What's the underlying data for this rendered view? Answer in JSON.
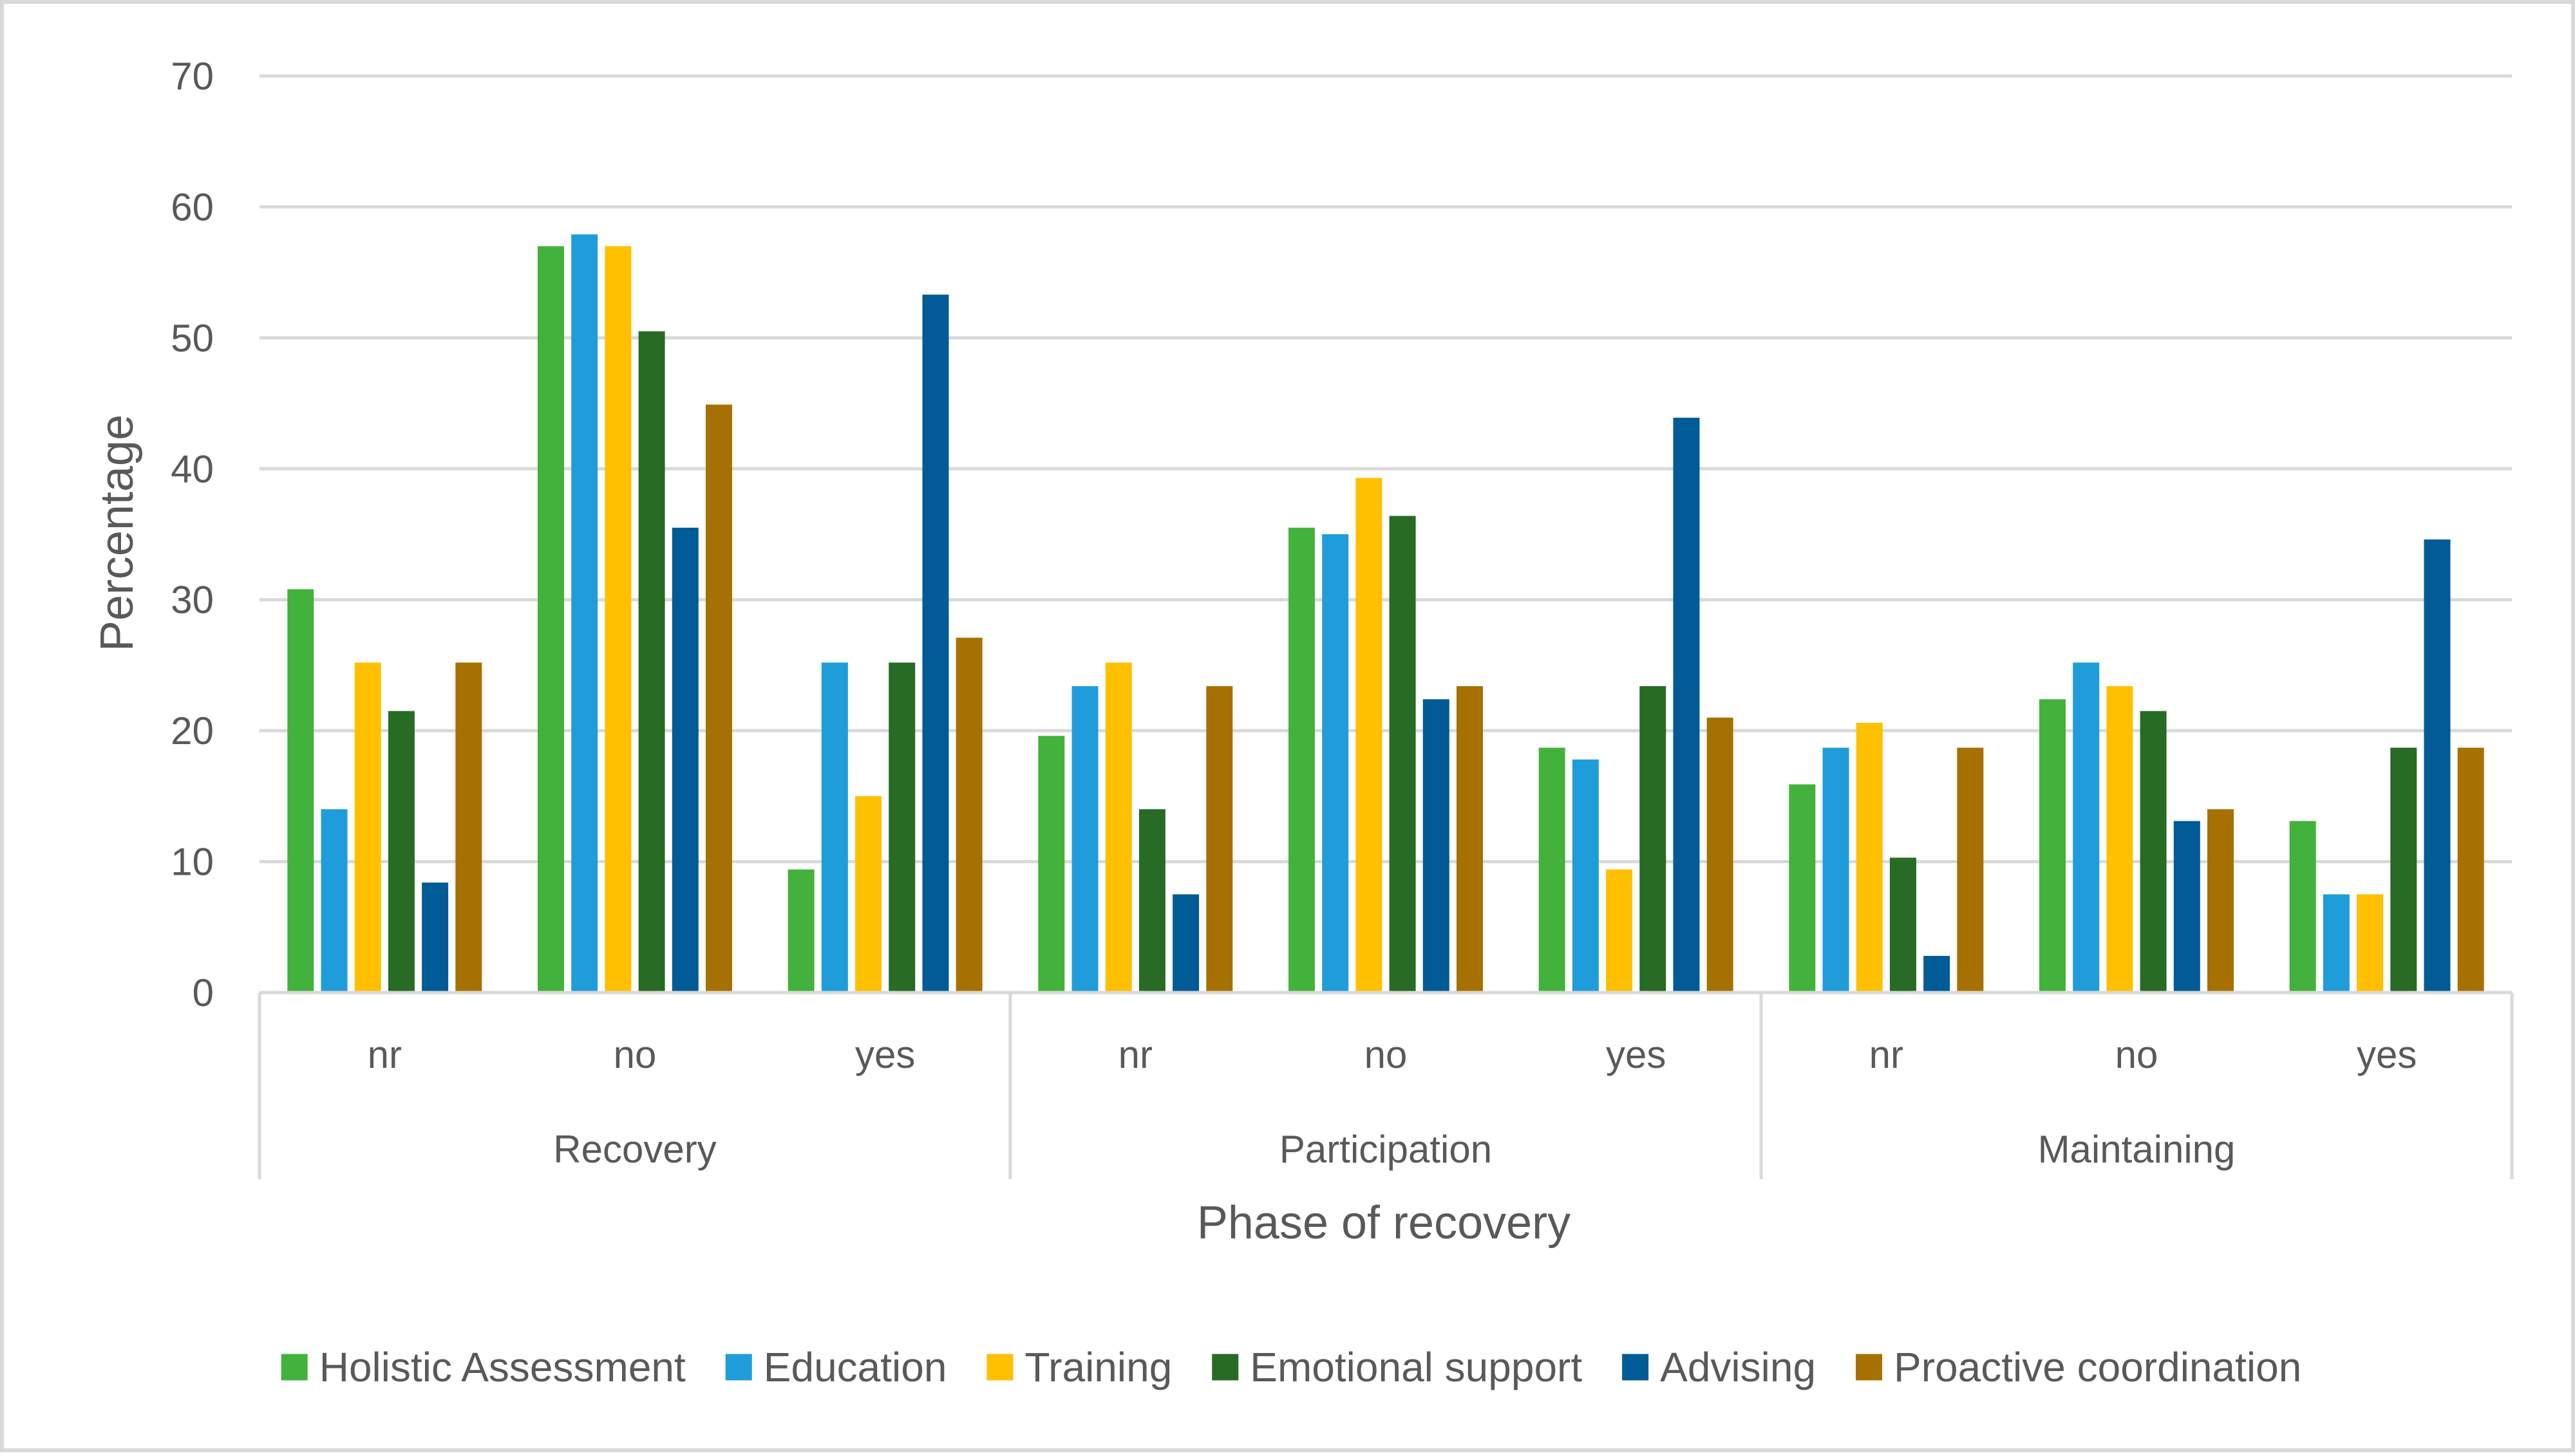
{
  "chart_data": {
    "type": "bar",
    "title": "",
    "xlabel": "Phase of recovery",
    "ylabel": "Percentage",
    "ylim": [
      0,
      70
    ],
    "yticks": [
      0,
      10,
      20,
      30,
      40,
      50,
      60,
      70
    ],
    "grid": true,
    "legend_position": "bottom",
    "groups": [
      "Recovery",
      "Participation",
      "Maintaining"
    ],
    "subcategories": [
      "nr",
      "no",
      "yes"
    ],
    "categories": [
      "Recovery nr",
      "Recovery no",
      "Recovery yes",
      "Participation nr",
      "Participation no",
      "Participation yes",
      "Maintaining nr",
      "Maintaining no",
      "Maintaining yes"
    ],
    "series": [
      {
        "name": "Holistic Assessment",
        "color": "#43b23c",
        "values": [
          30.8,
          57.0,
          9.4,
          19.6,
          35.5,
          18.7,
          15.9,
          22.4,
          13.1
        ]
      },
      {
        "name": "Education",
        "color": "#1f9ddb",
        "values": [
          14.0,
          57.9,
          25.2,
          23.4,
          35.0,
          17.8,
          18.7,
          25.2,
          7.5
        ]
      },
      {
        "name": "Training",
        "color": "#ffc000",
        "values": [
          25.2,
          57.0,
          15.0,
          25.2,
          39.3,
          9.4,
          20.6,
          23.4,
          7.5
        ]
      },
      {
        "name": "Emotional support",
        "color": "#276b25",
        "values": [
          21.5,
          50.5,
          25.2,
          14.0,
          36.4,
          23.4,
          10.3,
          21.5,
          18.7
        ]
      },
      {
        "name": "Advising",
        "color": "#005b96",
        "values": [
          8.4,
          35.5,
          53.3,
          7.5,
          22.4,
          43.9,
          2.8,
          13.1,
          34.6
        ]
      },
      {
        "name": "Proactive coordination",
        "color": "#a67100",
        "values": [
          25.2,
          44.9,
          27.1,
          23.4,
          23.4,
          21.0,
          18.7,
          14.0,
          18.7
        ]
      }
    ]
  }
}
